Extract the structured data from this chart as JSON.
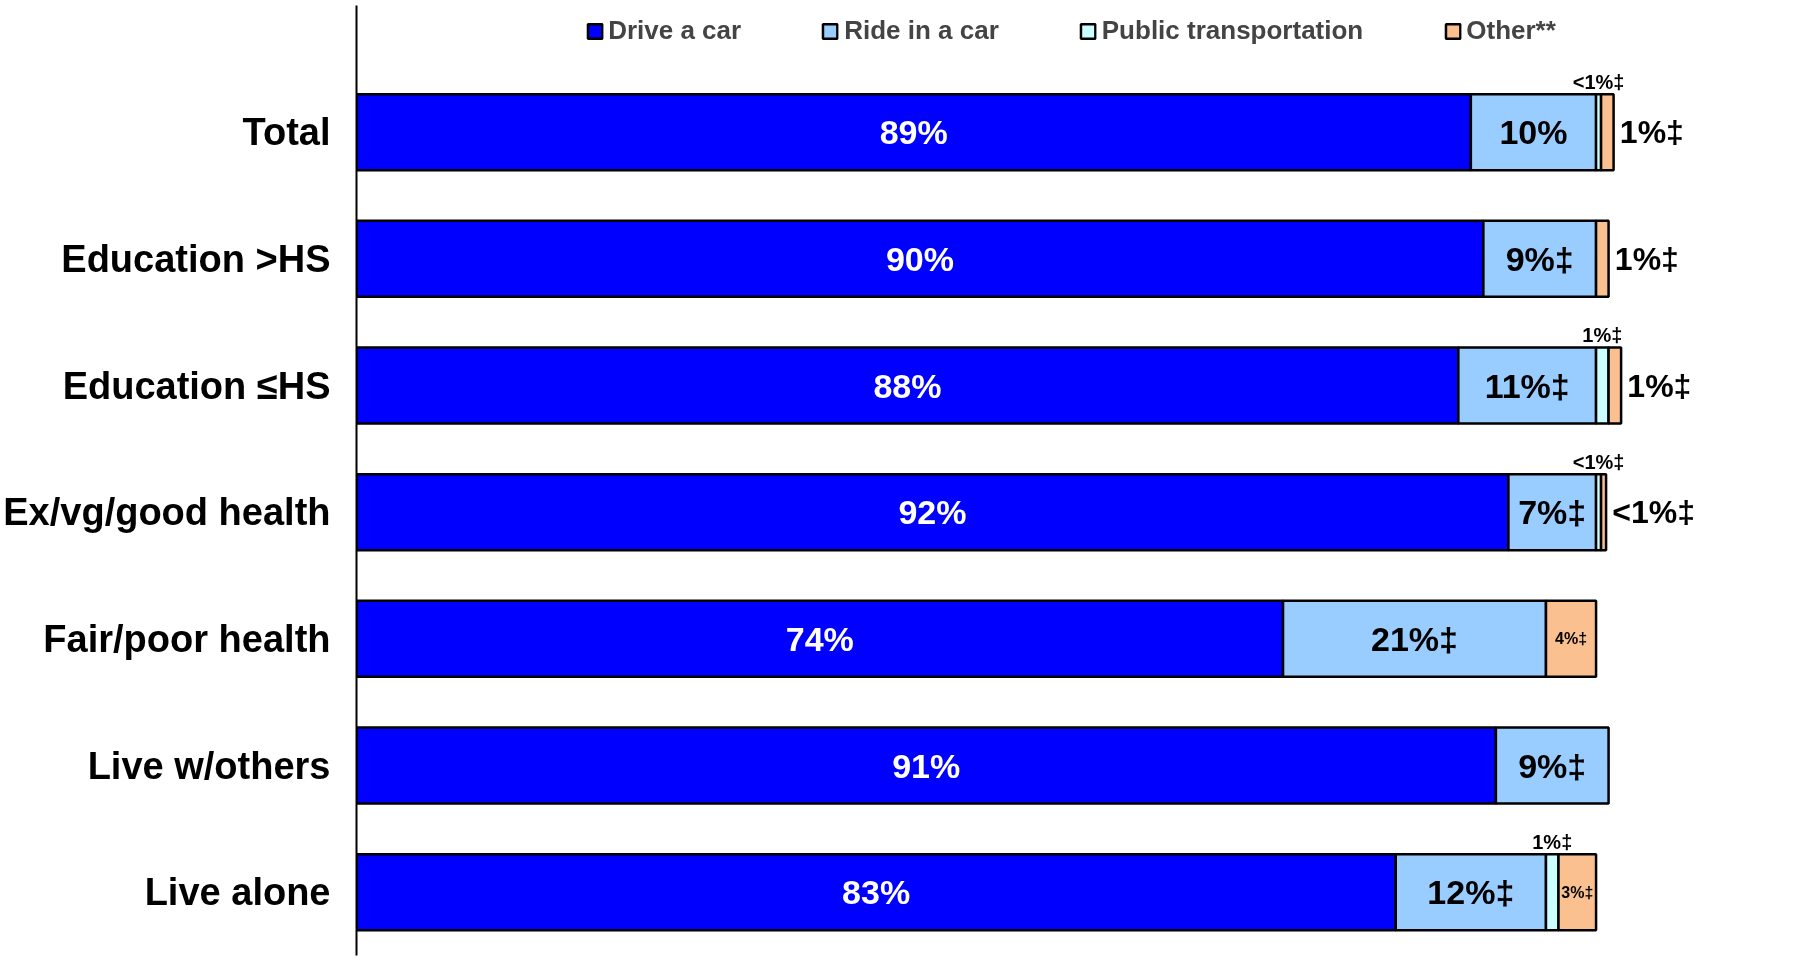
{
  "chart_data": {
    "type": "bar",
    "orientation": "horizontal",
    "stacked": true,
    "legend": "top",
    "grid": false,
    "categories": [
      "Total",
      "Education >HS",
      "Education ≤HS",
      "Ex/vg/good health",
      "Fair/poor health",
      "Live w/others",
      "Live alone"
    ],
    "series": [
      {
        "name": "Drive a car",
        "color": "#0000ff",
        "values": [
          89,
          90,
          88,
          92,
          74,
          91,
          83
        ],
        "value_labels": [
          "89%",
          "90%",
          "88%",
          "92%",
          "74%",
          "91%",
          "83%"
        ]
      },
      {
        "name": "Ride in a car",
        "color": "#99ccff",
        "values": [
          10,
          9,
          11,
          7,
          21,
          9,
          12
        ],
        "value_labels": [
          "10%",
          "9%‡",
          "11%‡",
          "7%‡",
          "21%‡",
          "9%‡",
          "12%‡"
        ]
      },
      {
        "name": "Public transportation",
        "color": "#ccffff",
        "values": [
          0.4,
          null,
          1,
          0.4,
          null,
          null,
          1
        ],
        "value_labels": [
          "<1%‡",
          null,
          "1%‡",
          "<1%‡",
          null,
          null,
          "1%‡"
        ]
      },
      {
        "name": "Other**",
        "color": "#fac090",
        "values": [
          1,
          1,
          1,
          0.4,
          4,
          null,
          3
        ],
        "value_labels": [
          "1%‡",
          "1%‡",
          "1%‡",
          "<1%‡",
          "4%‡",
          null,
          "3%‡"
        ]
      }
    ]
  }
}
